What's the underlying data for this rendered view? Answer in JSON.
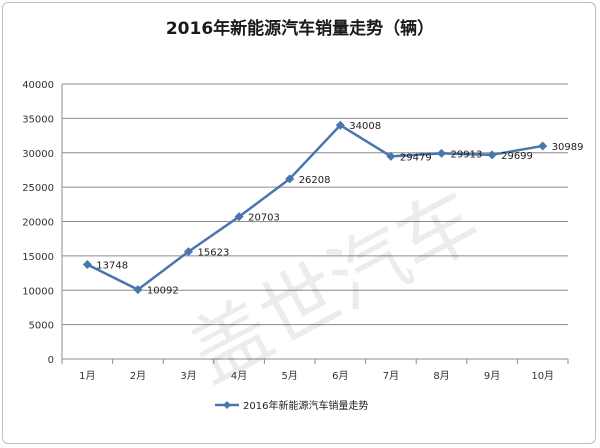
{
  "chart_data": {
    "type": "line",
    "title": "2016年新能源汽车销量走势（辆）",
    "categories": [
      "1月",
      "2月",
      "3月",
      "4月",
      "5月",
      "6月",
      "7月",
      "8月",
      "9月",
      "10月"
    ],
    "series": [
      {
        "name": "2016年新能源汽车销量走势",
        "values": [
          13748,
          10092,
          15623,
          20703,
          26208,
          34008,
          29479,
          29913,
          29699,
          30989
        ],
        "color": "#4a76ae"
      }
    ],
    "ylim": [
      0,
      40000
    ],
    "yticks": [
      0,
      5000,
      10000,
      15000,
      20000,
      25000,
      30000,
      35000,
      40000
    ],
    "grid": true,
    "legend": "bottom"
  },
  "watermark": "盖世汽车"
}
